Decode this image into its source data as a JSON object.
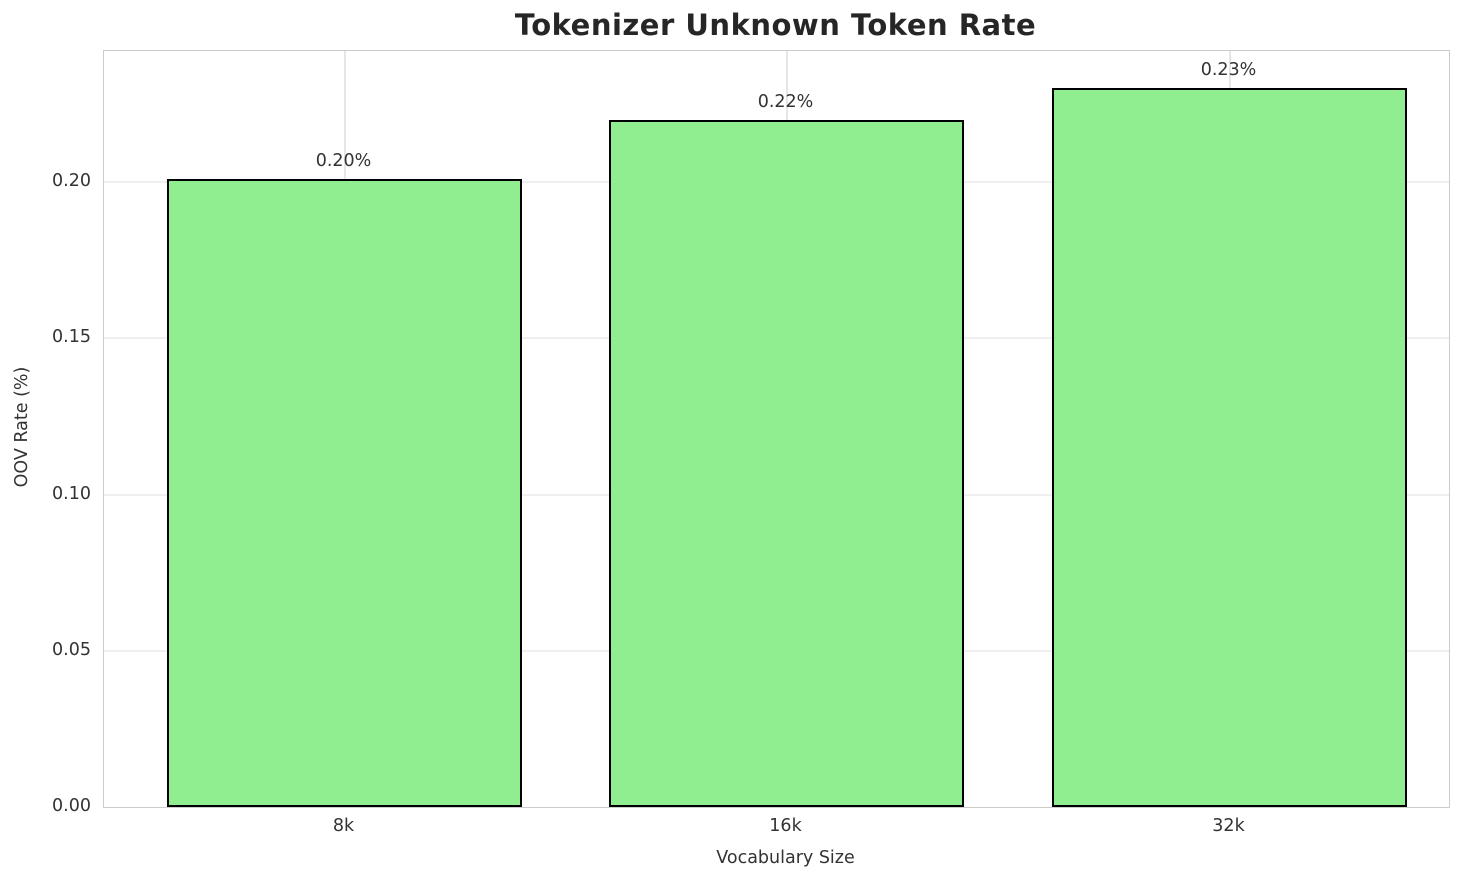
{
  "chart_data": {
    "type": "bar",
    "title": "Tokenizer Unknown Token Rate",
    "categories": [
      "8k",
      "16k",
      "32k"
    ],
    "values": [
      0.201,
      0.22,
      0.23
    ],
    "bar_labels": [
      "0.20%",
      "0.22%",
      "0.23%"
    ],
    "xlabel": "Vocabulary Size",
    "ylabel": "OOV Rate (%)",
    "ylim": [
      0,
      0.242
    ],
    "yticks": [
      0,
      0.05,
      0.1,
      0.15,
      0.2
    ],
    "ytick_labels": [
      "0.00",
      "0.05",
      "0.10",
      "0.15",
      "0.20"
    ],
    "grid": true,
    "legend": "none",
    "bar_color": "#90EE90",
    "bar_edge_color": "#000000",
    "grid_color": "#efefef",
    "spine_color": "#cccccc",
    "text_color": "#333333",
    "title_color": "#262626",
    "background": "#ffffff"
  }
}
